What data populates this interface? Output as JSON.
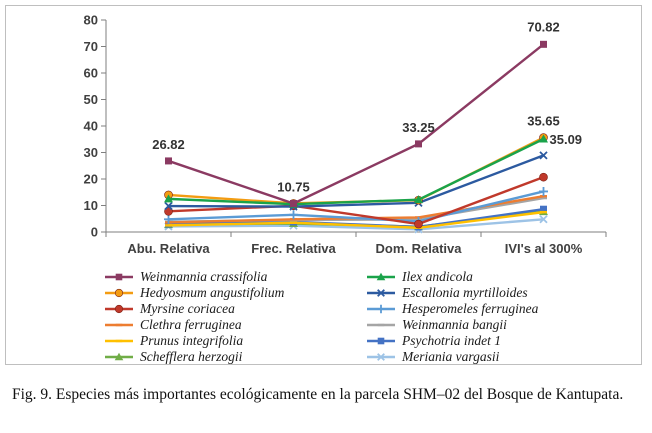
{
  "chart_data": {
    "type": "line",
    "categories": [
      "Abu. Relativa",
      "Frec. Relativa",
      "Dom. Relativa",
      "IVI's al 300%"
    ],
    "ylim": [
      0,
      80
    ],
    "yticks": [
      0,
      10,
      20,
      30,
      40,
      50,
      60,
      70,
      80
    ],
    "grid": false,
    "legend_placement": "bottom",
    "series": [
      {
        "name": "Weinmannia crassifolia",
        "color": "#8b3a62",
        "marker": "square",
        "values": [
          26.82,
          10.75,
          33.25,
          70.82
        ]
      },
      {
        "name": "Ilex andicola",
        "color": "#1aa34a",
        "marker": "triangle",
        "values": [
          12.5,
          10.5,
          12.2,
          35.09
        ]
      },
      {
        "name": "Hedyosmum angustifolium",
        "color": "#f39c12",
        "marker": "circle",
        "values": [
          14.0,
          10.8,
          12.0,
          35.65
        ]
      },
      {
        "name": "Escallonia myrtilloides",
        "color": "#2c5aa0",
        "marker": "x",
        "values": [
          9.8,
          9.6,
          11.0,
          28.9
        ]
      },
      {
        "name": "Myrsine coriacea",
        "color": "#c0392b",
        "marker": "circle",
        "values": [
          7.8,
          9.9,
          3.0,
          20.7
        ]
      },
      {
        "name": "Hesperomeles ferruginea",
        "color": "#5b9bd5",
        "marker": "plus",
        "values": [
          4.8,
          6.5,
          4.0,
          15.3
        ]
      },
      {
        "name": "Clethra ferruginea",
        "color": "#ed7d31",
        "marker": "dash",
        "values": [
          3.6,
          4.8,
          5.5,
          13.5
        ]
      },
      {
        "name": "Weinmannia bangii",
        "color": "#a5a5a5",
        "marker": "dash",
        "values": [
          3.9,
          4.5,
          4.8,
          12.8
        ]
      },
      {
        "name": "Prunus integrifolia",
        "color": "#ffc000",
        "marker": "dash",
        "values": [
          2.5,
          3.5,
          1.6,
          7.5
        ]
      },
      {
        "name": "Psychotria indet 1",
        "color": "#4472c4",
        "marker": "square",
        "values": [
          3.0,
          3.8,
          1.9,
          8.6
        ]
      },
      {
        "name": "Schefflera herzogii",
        "color": "#70ad47",
        "marker": "triangle",
        "values": [
          2.8,
          3.2,
          2.0,
          7.7
        ]
      },
      {
        "name": "Meriania vargasii",
        "color": "#9dc3e6",
        "marker": "x",
        "values": [
          2.1,
          2.4,
          1.0,
          4.8
        ]
      }
    ],
    "data_labels": [
      {
        "text": "26.82",
        "series": 0,
        "point": 0
      },
      {
        "text": "10.75",
        "series": 0,
        "point": 1
      },
      {
        "text": "33.25",
        "series": 0,
        "point": 2
      },
      {
        "text": "70.82",
        "series": 0,
        "point": 3
      },
      {
        "text": "35.65",
        "series": 2,
        "point": 3
      },
      {
        "text": "35.09",
        "series": 1,
        "point": 3
      }
    ]
  },
  "caption": "Fig. 9. Especies más importantes ecológicamente en la parcela SHM–02 del Bosque de Kantupata."
}
